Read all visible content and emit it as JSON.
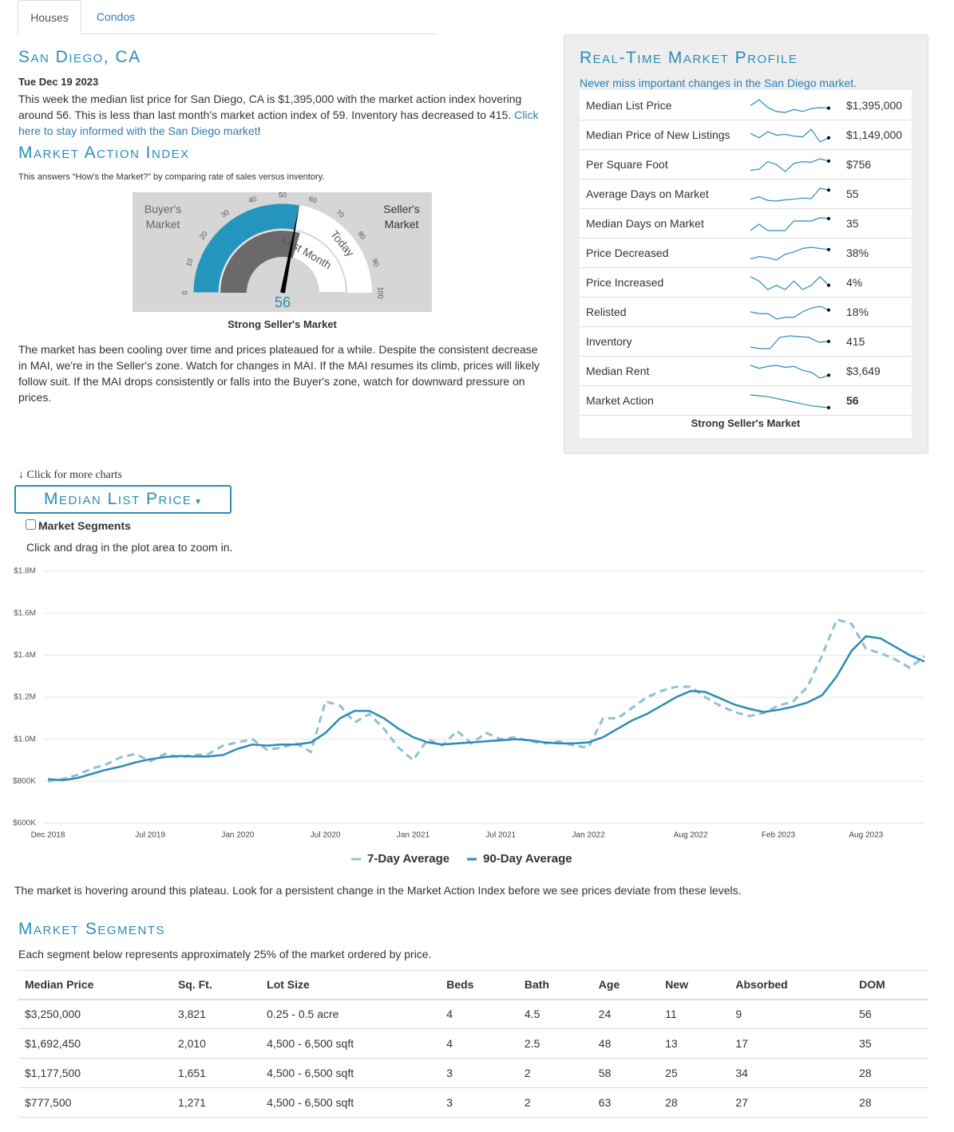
{
  "tabs": [
    "Houses",
    "Condos"
  ],
  "location": "San Diego, CA",
  "date": "Tue Dec 19 2023",
  "summary": "This week the median list price for San Diego, CA is $1,395,000 with the market action index hovering around 56. This is less than last month's market action index of 59. Inventory has decreased to 415.",
  "summary_link": "Click here to stay informed with the San Diego market",
  "summary_end": "!",
  "mai_heading": "Market Action Index",
  "mai_description": "This answers “How's the Market?” by comparing rate of sales versus inventory.",
  "gauge": {
    "buyer_label": "Buyer's Market",
    "seller_label": "Seller's Market",
    "ticks": [
      0,
      10,
      20,
      30,
      40,
      50,
      60,
      70,
      80,
      90,
      100
    ],
    "value": 56,
    "last_month_value": 59,
    "last_month_label": "Last Month",
    "today_label": "Today",
    "status": "Strong Seller's Market"
  },
  "commentary": "The market has been cooling over time and prices plateaued for a while. Despite the consistent decrease in MAI, we're in the Seller's zone. Watch for changes in MAI. If the MAI resumes its climb, prices will likely follow suit. If the MAI drops consistently or falls into the Buyer's zone, watch for downward pressure on prices.",
  "profile": {
    "title": "Real-Time Market Profile",
    "subtitle": "Never miss important changes in the San Diego market.",
    "rows": [
      {
        "label": "Median List Price",
        "value": "$1,395,000",
        "spark": [
          1420000,
          1480000,
          1400000,
          1360000,
          1350000,
          1380000,
          1360000,
          1390000,
          1400000,
          1395000
        ]
      },
      {
        "label": "Median Price of New Listings",
        "value": "$1,149,000",
        "spark": [
          1200000,
          1150000,
          1220000,
          1180000,
          1190000,
          1170000,
          1160000,
          1250000,
          1100000,
          1149000
        ]
      },
      {
        "label": "Per Square Foot",
        "value": "$756",
        "spark": [
          740,
          742,
          755,
          750,
          738,
          752,
          755,
          754,
          760,
          756
        ]
      },
      {
        "label": "Average Days on Market",
        "value": "55",
        "spark": [
          40,
          44,
          38,
          37,
          39,
          40,
          42,
          41,
          58,
          55
        ]
      },
      {
        "label": "Median Days on Market",
        "value": "35",
        "spark": [
          20,
          28,
          20,
          20,
          20,
          32,
          32,
          32,
          36,
          35
        ]
      },
      {
        "label": "Price Decreased",
        "value": "38%",
        "spark": [
          30,
          32,
          31,
          29,
          34,
          36,
          39,
          40,
          39,
          38
        ]
      },
      {
        "label": "Price Increased",
        "value": "4%",
        "spark": [
          6,
          5,
          3,
          4,
          3,
          5,
          3,
          4,
          6,
          4
        ]
      },
      {
        "label": "Relisted",
        "value": "18%",
        "spark": [
          17,
          16,
          16,
          13,
          14,
          14,
          17,
          19,
          20,
          18
        ]
      },
      {
        "label": "Inventory",
        "value": "415",
        "spark": [
          380,
          370,
          370,
          440,
          450,
          445,
          440,
          410,
          415
        ]
      },
      {
        "label": "Median Rent",
        "value": "$3,649",
        "spark": [
          3750,
          3720,
          3740,
          3750,
          3730,
          3740,
          3700,
          3680,
          3620,
          3649
        ]
      },
      {
        "label": "Market Action",
        "value": "56",
        "spark": [
          70,
          69,
          68,
          66,
          64,
          62,
          60,
          58,
          57,
          56
        ]
      }
    ],
    "footer": "Strong Seller's Market"
  },
  "more_charts": "Click for more charts",
  "chart_button": "Median List Price",
  "segments_checkbox": "Market Segments",
  "zoom_hint": "Click and drag in the plot area to zoom in.",
  "chart_data": {
    "type": "line",
    "categories": [
      "Dec 2018",
      null,
      null,
      null,
      null,
      null,
      null,
      "Jul 2019",
      null,
      null,
      null,
      null,
      null,
      "Jan 2020",
      null,
      null,
      null,
      null,
      null,
      "Jul 2020",
      null,
      null,
      null,
      null,
      null,
      "Jan 2021",
      null,
      null,
      null,
      null,
      null,
      "Jul 2021",
      null,
      null,
      null,
      null,
      null,
      "Jan 2022",
      null,
      null,
      null,
      null,
      null,
      null,
      "Aug 2022",
      null,
      null,
      null,
      null,
      null,
      "Feb 2023",
      null,
      null,
      null,
      null,
      null,
      "Aug 2023",
      null,
      null,
      null,
      null
    ],
    "ylim": [
      600000,
      1800000
    ],
    "yticks": [
      {
        "value": 600000,
        "label": "$600K"
      },
      {
        "value": 800000,
        "label": "$800K"
      },
      {
        "value": 1000000,
        "label": "$1.0M"
      },
      {
        "value": 1200000,
        "label": "$1.2M"
      },
      {
        "value": 1400000,
        "label": "$1.4M"
      },
      {
        "value": 1600000,
        "label": "$1.6M"
      },
      {
        "value": 1800000,
        "label": "$1.8M"
      }
    ],
    "grid": true,
    "series": [
      {
        "name": "7-Day Average",
        "color": "#8fc1d3",
        "dashed": true,
        "values": [
          800000,
          810000,
          830000,
          860000,
          880000,
          915000,
          930000,
          895000,
          930000,
          915000,
          925000,
          930000,
          970000,
          985000,
          1000000,
          950000,
          960000,
          980000,
          940000,
          1180000,
          1160000,
          1080000,
          1120000,
          1050000,
          960000,
          900000,
          1000000,
          970000,
          1040000,
          980000,
          1030000,
          1000000,
          1010000,
          990000,
          980000,
          990000,
          970000,
          960000,
          1100000,
          1100000,
          1150000,
          1200000,
          1230000,
          1250000,
          1250000,
          1200000,
          1160000,
          1130000,
          1110000,
          1125000,
          1160000,
          1180000,
          1250000,
          1400000,
          1570000,
          1550000,
          1430000,
          1410000,
          1380000,
          1340000,
          1395000
        ]
      },
      {
        "name": "90-Day Average",
        "color": "#2a8db5",
        "dashed": false,
        "values": [
          810000,
          805000,
          815000,
          835000,
          855000,
          870000,
          890000,
          905000,
          915000,
          920000,
          918000,
          918000,
          925000,
          955000,
          975000,
          970000,
          975000,
          975000,
          985000,
          1030000,
          1100000,
          1135000,
          1135000,
          1100000,
          1050000,
          1010000,
          985000,
          975000,
          980000,
          985000,
          990000,
          995000,
          1000000,
          995000,
          985000,
          980000,
          980000,
          985000,
          1010000,
          1050000,
          1090000,
          1120000,
          1160000,
          1200000,
          1230000,
          1225000,
          1195000,
          1165000,
          1145000,
          1130000,
          1140000,
          1155000,
          1175000,
          1210000,
          1300000,
          1420000,
          1490000,
          1480000,
          1440000,
          1400000,
          1370000
        ]
      }
    ]
  },
  "chart_note": "The market is hovering around this plateau. Look for a persistent change in the Market Action Index before we see prices deviate from these levels.",
  "segments": {
    "heading": "Market Segments",
    "description": "Each segment below represents approximately 25% of the market ordered by price.",
    "table": {
      "headers": [
        "Median Price",
        "Sq. Ft.",
        "Lot Size",
        "Beds",
        "Bath",
        "Age",
        "New",
        "Absorbed",
        "DOM"
      ],
      "rows": [
        [
          "$3,250,000",
          "3,821",
          "0.25 - 0.5 acre",
          "4",
          "4.5",
          "24",
          "11",
          "9",
          "56"
        ],
        [
          "$1,692,450",
          "2,010",
          "4,500 - 6,500 sqft",
          "4",
          "2.5",
          "48",
          "13",
          "17",
          "35"
        ],
        [
          "$1,177,500",
          "1,651",
          "4,500 - 6,500 sqft",
          "3",
          "2",
          "58",
          "25",
          "34",
          "28"
        ],
        [
          "$777,500",
          "1,271",
          "4,500 - 6,500 sqft",
          "3",
          "2",
          "63",
          "28",
          "27",
          "28"
        ]
      ]
    }
  }
}
